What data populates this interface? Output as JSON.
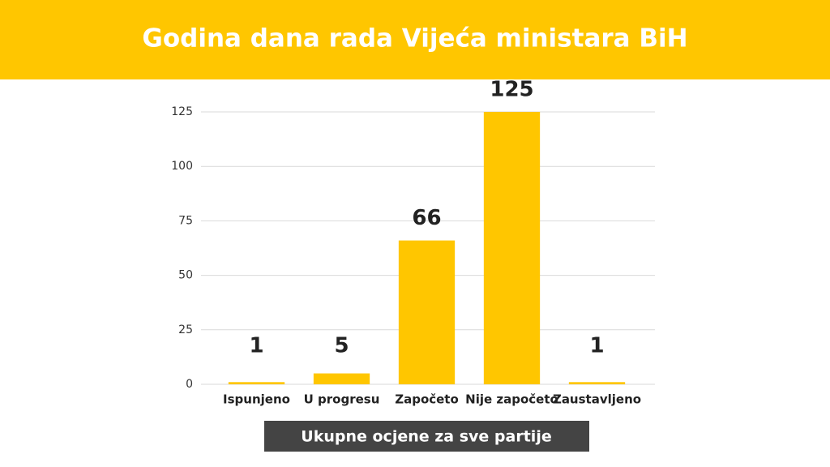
{
  "chart_data": {
    "type": "bar",
    "title": "Godina dana rada Vijeća ministara BiH",
    "categories": [
      "Ispunjeno",
      "U progresu",
      "Započeto",
      "Nije započeto",
      "Zaustavljeno"
    ],
    "values": [
      1,
      5,
      66,
      125,
      1
    ],
    "color": "#ffc600",
    "ylim": [
      0,
      125
    ],
    "yticks": [
      0,
      25,
      50,
      75,
      100,
      125
    ],
    "grid": true,
    "xlabel": "Ukupne ocjene za sve partije"
  }
}
